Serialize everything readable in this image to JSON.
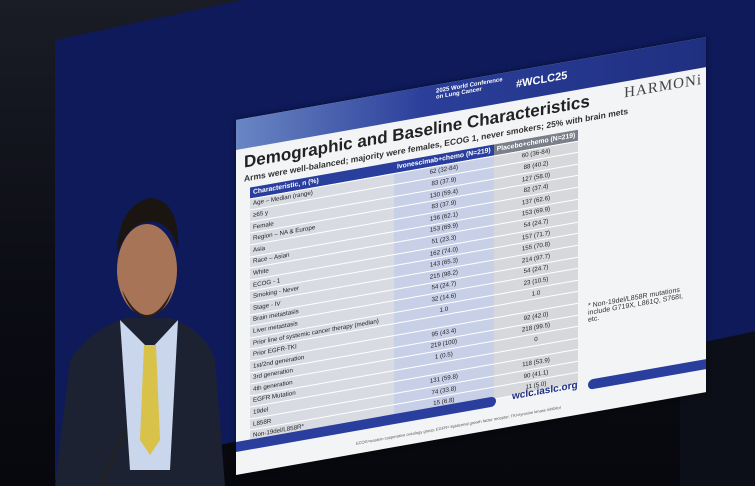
{
  "header": {
    "hashtag": "#WCLC25",
    "conference": "2025 World Conference on Lung Cancer",
    "trial": "HARMONi"
  },
  "slide": {
    "title": "Demographic and Baseline Characteristics",
    "subtitle": "Arms were well-balanced; majority were females, ECOG 1, never smokers; 25% with brain mets"
  },
  "table": {
    "columns": [
      "Characteristic, n (%)",
      "Ivonescimab+chemo (N=219)",
      "Placebo+chemo (N=219)"
    ],
    "rows": [
      [
        "Age – Median (range)",
        "62 (32-84)",
        "60 (36-84)"
      ],
      [
        "≥65 y",
        "83 (37.9)",
        "88 (40.2)"
      ],
      [
        "Female",
        "130 (59.4)",
        "127 (58.0)"
      ],
      [
        "Region – NA & Europe",
        "83 (37.9)",
        "82 (37.4)"
      ],
      [
        "Asia",
        "136 (62.1)",
        "137 (62.6)"
      ],
      [
        "Race – Asian",
        "153 (69.9)",
        "153 (69.9)"
      ],
      [
        "White",
        "51 (23.3)",
        "54 (24.7)"
      ],
      [
        "ECOG - 1",
        "162 (74.0)",
        "157 (71.7)"
      ],
      [
        "Smoking - Never",
        "143 (65.3)",
        "155 (70.8)"
      ],
      [
        "Stage - IV",
        "215 (98.2)",
        "214 (97.7)"
      ],
      [
        "Brain metastasis",
        "54 (24.7)",
        "54 (24.7)"
      ],
      [
        "Liver metastasis",
        "32 (14.6)",
        "23 (10.5)"
      ],
      [
        "Prior line of systemic cancer therapy (median)",
        "1.0",
        "1.0"
      ],
      [
        "Prior EGFR-TKI"
      ],
      [
        "1st/2nd generation",
        "95 (43.4)",
        "92 (42.0)"
      ],
      [
        "3rd generation",
        "219 (100)",
        "218 (99.5)"
      ],
      [
        "4th generation",
        "1 (0.5)",
        "0"
      ],
      [
        "EGFR Mutation"
      ],
      [
        "19del",
        "131 (59.8)",
        "118 (53.9)"
      ],
      [
        "L858R",
        "74 (33.8)",
        "90 (41.1)"
      ],
      [
        "Non-19del/L858R*",
        "15 (6.8)",
        "11 (5.0)"
      ]
    ]
  },
  "footnote": "* Non-19del/L858R mutations include G719X, L861Q, S768I, etc.",
  "website": "wclc.iaslc.org",
  "abbreviations": "ECOG=eastern cooperative oncology group; EGFR= Epidermal growth factor receptor; TKI=tyrosine kinase inhibitor"
}
